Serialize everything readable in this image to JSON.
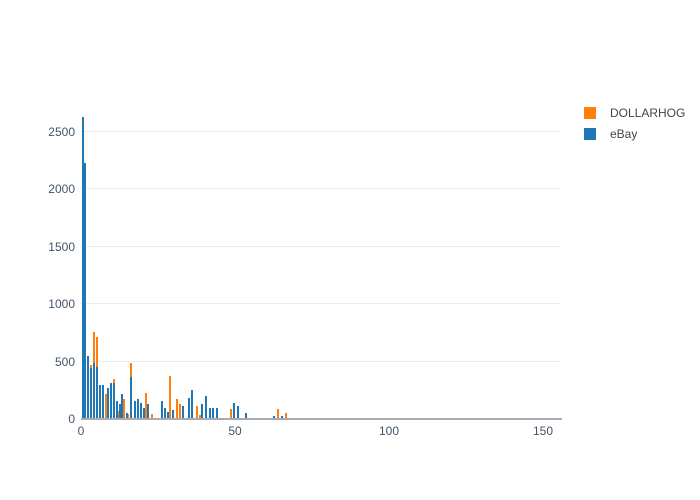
{
  "chart": {
    "background": "#ffffff",
    "axis_line_color": "#a9a9af",
    "grid_color": "#ececec",
    "tick_label_color": "#44546a"
  },
  "chart_data": {
    "type": "bar",
    "title": "",
    "xlabel": "",
    "ylabel": "",
    "xlim": [
      0,
      156
    ],
    "ylim": [
      0,
      2735
    ],
    "x_ticks": [
      0,
      50,
      100,
      150
    ],
    "y_ticks": [
      0,
      500,
      1000,
      1500,
      2000,
      2500
    ],
    "grid": true,
    "legend_position": "top-right-outside",
    "bar_mode": "overlay",
    "series": [
      {
        "name": "DOLLARHOG",
        "color": "#ff7f0e",
        "points": [
          [
            3.3,
            470
          ],
          [
            4.3,
            755
          ],
          [
            5.2,
            710
          ],
          [
            8.0,
            215
          ],
          [
            10.7,
            345
          ],
          [
            12.3,
            70
          ],
          [
            14.0,
            170
          ],
          [
            15.3,
            45
          ],
          [
            16.2,
            490
          ],
          [
            21.0,
            230
          ],
          [
            23.0,
            40
          ],
          [
            29.0,
            375
          ],
          [
            31.3,
            170
          ],
          [
            32.3,
            128
          ],
          [
            37.5,
            113
          ],
          [
            38.5,
            35
          ],
          [
            48.8,
            85
          ],
          [
            64.0,
            85
          ],
          [
            66.6,
            50
          ]
        ]
      },
      {
        "name": "eBay",
        "color": "#1f77b4",
        "points": [
          [
            0.5,
            2630
          ],
          [
            1.4,
            2230
          ],
          [
            2.4,
            550
          ],
          [
            3.3,
            445
          ],
          [
            4.3,
            490
          ],
          [
            5.2,
            450
          ],
          [
            6.2,
            300
          ],
          [
            7.1,
            295
          ],
          [
            8.9,
            270
          ],
          [
            9.8,
            315
          ],
          [
            10.7,
            310
          ],
          [
            11.6,
            155
          ],
          [
            12.5,
            130
          ],
          [
            13.4,
            220
          ],
          [
            14.8,
            55
          ],
          [
            16.2,
            365
          ],
          [
            17.5,
            157
          ],
          [
            18.5,
            170
          ],
          [
            19.4,
            142
          ],
          [
            20.6,
            98
          ],
          [
            21.6,
            130
          ],
          [
            26.4,
            155
          ],
          [
            27.3,
            95
          ],
          [
            28.3,
            60
          ],
          [
            30.0,
            80
          ],
          [
            33.0,
            115
          ],
          [
            35.0,
            185
          ],
          [
            36.0,
            250
          ],
          [
            39.3,
            128
          ],
          [
            40.5,
            200
          ],
          [
            42.0,
            98
          ],
          [
            43.0,
            95
          ],
          [
            44.0,
            95
          ],
          [
            49.8,
            142
          ],
          [
            51.0,
            115
          ],
          [
            53.7,
            48
          ],
          [
            62.8,
            30
          ],
          [
            65.3,
            30
          ]
        ]
      }
    ]
  }
}
